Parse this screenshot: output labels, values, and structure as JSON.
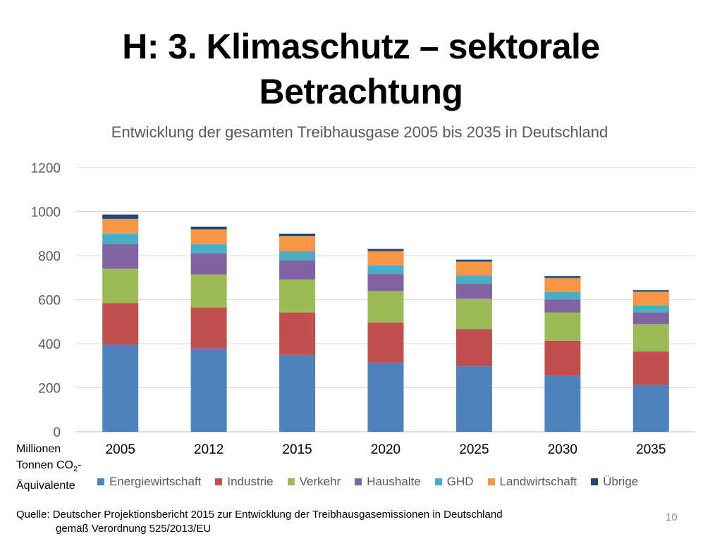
{
  "slide": {
    "title_line1": "H: 3. Klimaschutz – sektorale",
    "title_line2": "Betrachtung",
    "y_unit_line1": "Millionen",
    "y_unit_line2": "Tonnen CO",
    "y_unit_sub": "2",
    "y_unit_suffix": "-",
    "y_unit_line3": "Äquivalente",
    "source_line1": "Quelle: Deutscher Projektionsbericht 2015 zur Entwicklung der Treibhausgasemissionen in Deutschland",
    "source_line2": "gemäß Verordnung 525/2013/EU",
    "page_number": "10"
  },
  "chart_data": {
    "type": "bar",
    "stacked": true,
    "title": "Entwicklung der gesamten Treibhausgase 2005 bis 2035 in Deutschland",
    "categories": [
      "2005",
      "2012",
      "2015",
      "2020",
      "2025",
      "2030",
      "2035"
    ],
    "ylim": [
      0,
      1200
    ],
    "yticks": [
      0,
      200,
      400,
      600,
      800,
      1000,
      1200
    ],
    "grid": true,
    "legend_position": "bottom",
    "series": [
      {
        "name": "Energiewirtschaft",
        "color": "#4F81BD",
        "values": [
          397,
          378,
          350,
          314,
          297,
          255,
          213
        ]
      },
      {
        "name": "Industrie",
        "color": "#C0504D",
        "values": [
          188,
          187,
          192,
          182,
          170,
          158,
          152
        ]
      },
      {
        "name": "Verkehr",
        "color": "#9BBB59",
        "values": [
          156,
          150,
          150,
          143,
          138,
          129,
          124
        ]
      },
      {
        "name": "Haushalte",
        "color": "#8064A2",
        "values": [
          113,
          96,
          87,
          78,
          68,
          59,
          54
        ]
      },
      {
        "name": "GHD",
        "color": "#4BACC6",
        "values": [
          45,
          42,
          43,
          38,
          36,
          34,
          30
        ]
      },
      {
        "name": "Landwirtschaft",
        "color": "#F79646",
        "values": [
          68,
          67,
          67,
          66,
          64,
          64,
          64
        ]
      },
      {
        "name": "Übrige",
        "color": "#1F497D",
        "values": [
          20,
          12,
          11,
          10,
          9,
          8,
          6
        ]
      }
    ]
  }
}
